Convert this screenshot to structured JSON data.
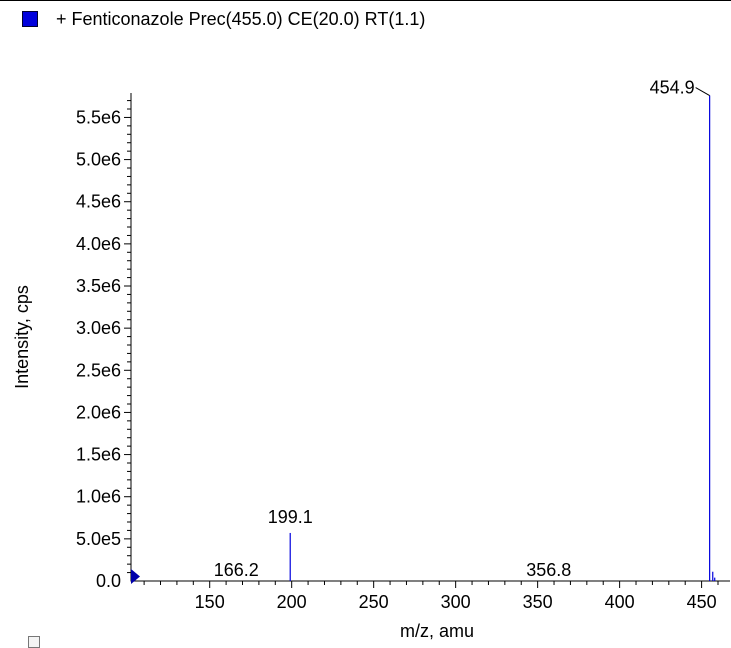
{
  "colors": {
    "series": "#0000dd",
    "axis": "#000000"
  },
  "chart_data": {
    "type": "bar",
    "title": "+ Fenticonazole Prec(455.0) CE(20.0) RT(1.1)",
    "xlabel": "m/z, amu",
    "ylabel": "Intensity, cps",
    "xlim": [
      102,
      460
    ],
    "ylim": [
      0,
      5790000
    ],
    "x_ticks": [
      {
        "value": 150,
        "label": "150"
      },
      {
        "value": 200,
        "label": "200"
      },
      {
        "value": 250,
        "label": "250"
      },
      {
        "value": 300,
        "label": "300"
      },
      {
        "value": 350,
        "label": "350"
      },
      {
        "value": 400,
        "label": "400"
      },
      {
        "value": 450,
        "label": "450"
      }
    ],
    "y_ticks": [
      {
        "value": 0,
        "label": "0.0"
      },
      {
        "value": 500000,
        "label": "5.0e5"
      },
      {
        "value": 1000000,
        "label": "1.0e6"
      },
      {
        "value": 1500000,
        "label": "1.5e6"
      },
      {
        "value": 2000000,
        "label": "2.0e6"
      },
      {
        "value": 2500000,
        "label": "2.5e6"
      },
      {
        "value": 3000000,
        "label": "3.0e6"
      },
      {
        "value": 3500000,
        "label": "3.5e6"
      },
      {
        "value": 4000000,
        "label": "4.0e6"
      },
      {
        "value": 4500000,
        "label": "4.5e6"
      },
      {
        "value": 5000000,
        "label": "5.0e6"
      },
      {
        "value": 5500000,
        "label": "5.5e6"
      }
    ],
    "peaks": [
      {
        "mz": 199.1,
        "intensity": 570000
      },
      {
        "mz": 454.9,
        "intensity": 5760000
      },
      {
        "mz": 456.8,
        "intensity": 110000
      },
      {
        "mz": 458.0,
        "intensity": 40000
      }
    ],
    "annotations": [
      {
        "mz": 166.2,
        "label": "166.2"
      },
      {
        "mz": 199.1,
        "label": "199.1"
      },
      {
        "mz": 356.8,
        "label": "356.8"
      },
      {
        "mz": 454.9,
        "label": "454.9"
      }
    ]
  }
}
